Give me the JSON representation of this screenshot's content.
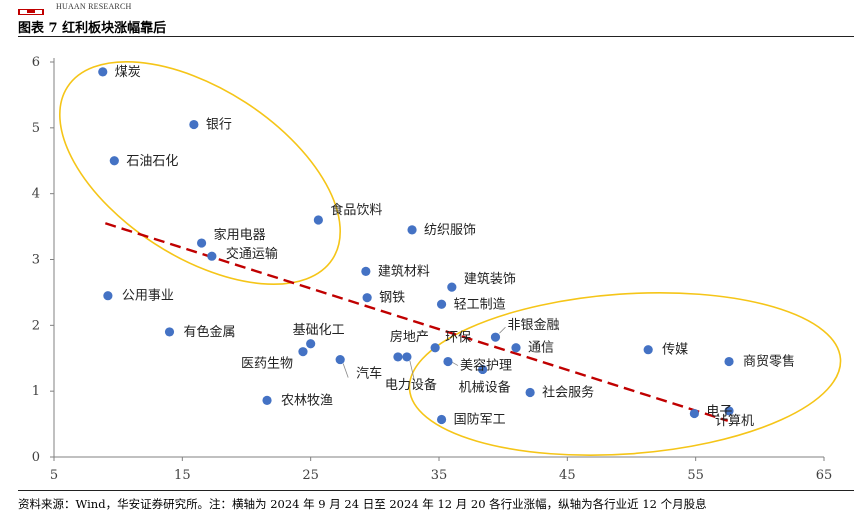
{
  "header": {
    "brand_en": "HUAAN RESEARCH",
    "figure_title": "图表 7  红利板块涨幅靠后"
  },
  "footer": {
    "source_note": "资料来源：Wind，华安证券研究所。注：横轴为 2024 年 9 月 24 日至 2024 年 12 月 20 各行业涨幅，纵轴为各行业近 12 个月股息"
  },
  "colors": {
    "point": "#4472C4",
    "trend": "#C00000",
    "ellipse": "#F5C518",
    "axis": "#808080"
  },
  "chart_data": {
    "type": "scatter",
    "title": "红利板块涨幅靠后",
    "xlabel": "",
    "ylabel": "",
    "xlim": [
      5,
      65
    ],
    "ylim": [
      0,
      6
    ],
    "xticks": [
      5,
      15,
      25,
      35,
      45,
      55,
      65
    ],
    "yticks": [
      0,
      1,
      2,
      3,
      4,
      5,
      6
    ],
    "grid": false,
    "points": [
      {
        "label": "煤炭",
        "x": 8.8,
        "y": 5.85
      },
      {
        "label": "银行",
        "x": 15.9,
        "y": 5.05
      },
      {
        "label": "石油石化",
        "x": 9.7,
        "y": 4.5
      },
      {
        "label": "食品饮料",
        "x": 25.6,
        "y": 3.6
      },
      {
        "label": "纺织服饰",
        "x": 32.9,
        "y": 3.45
      },
      {
        "label": "家用电器",
        "x": 16.5,
        "y": 3.25
      },
      {
        "label": "交通运输",
        "x": 17.3,
        "y": 3.05
      },
      {
        "label": "建筑材料",
        "x": 29.3,
        "y": 2.82
      },
      {
        "label": "建筑装饰",
        "x": 36.0,
        "y": 2.58
      },
      {
        "label": "公用事业",
        "x": 9.2,
        "y": 2.45
      },
      {
        "label": "钢铁",
        "x": 29.4,
        "y": 2.42
      },
      {
        "label": "轻工制造",
        "x": 35.2,
        "y": 2.32
      },
      {
        "label": "有色金属",
        "x": 14.0,
        "y": 1.9
      },
      {
        "label": "非银金融",
        "x": 39.4,
        "y": 1.82
      },
      {
        "label": "基础化工",
        "x": 25.0,
        "y": 1.72
      },
      {
        "label": "环保",
        "x": 34.7,
        "y": 1.66
      },
      {
        "label": "通信",
        "x": 41.0,
        "y": 1.66
      },
      {
        "label": "传媒",
        "x": 51.3,
        "y": 1.63
      },
      {
        "label": "医药生物",
        "x": 24.4,
        "y": 1.6
      },
      {
        "label": "房地产",
        "x": 31.8,
        "y": 1.52
      },
      {
        "label": "汽车",
        "x": 27.3,
        "y": 1.48
      },
      {
        "label": "电力设备",
        "x": 32.5,
        "y": 1.52
      },
      {
        "label": "美容护理",
        "x": 35.7,
        "y": 1.45
      },
      {
        "label": "商贸零售",
        "x": 57.6,
        "y": 1.45
      },
      {
        "label": "机械设备",
        "x": 38.4,
        "y": 1.33
      },
      {
        "label": "社会服务",
        "x": 42.1,
        "y": 0.98
      },
      {
        "label": "农林牧渔",
        "x": 21.6,
        "y": 0.86
      },
      {
        "label": "电子",
        "x": 54.9,
        "y": 0.66
      },
      {
        "label": "计算机",
        "x": 57.6,
        "y": 0.7
      },
      {
        "label": "国防军工",
        "x": 35.2,
        "y": 0.57
      }
    ],
    "trendline": {
      "from": [
        9.0,
        3.55
      ],
      "to": [
        57.5,
        0.55
      ]
    }
  }
}
